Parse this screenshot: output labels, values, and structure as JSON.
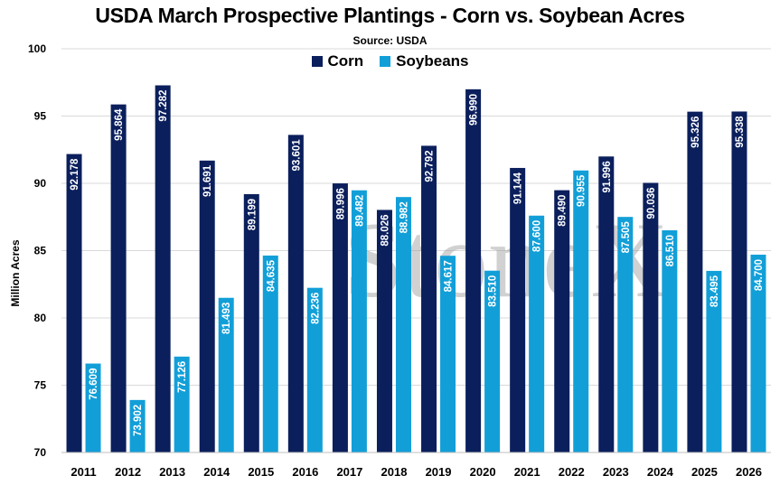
{
  "chart_data": {
    "type": "bar",
    "title": "USDA March Prospective Plantings - Corn vs. Soybean Acres",
    "subtitle": "Source: USDA",
    "xlabel": "",
    "ylabel": "Million Acres",
    "ylim": [
      70,
      100
    ],
    "yticks": [
      70,
      75,
      80,
      85,
      90,
      95,
      100
    ],
    "grid": true,
    "legend": "top-center",
    "watermark": "StoneX",
    "categories": [
      "2011",
      "2012",
      "2013",
      "2014",
      "2015",
      "2016",
      "2017",
      "2018",
      "2019",
      "2020",
      "2021",
      "2022",
      "2023",
      "2024",
      "2025",
      "2026"
    ],
    "series": [
      {
        "name": "Corn",
        "color": "#0b1f5c",
        "values": [
          92.178,
          95.864,
          97.282,
          91.691,
          89.199,
          93.601,
          89.996,
          88.026,
          92.792,
          96.99,
          91.144,
          89.49,
          91.996,
          90.036,
          95.326,
          95.338
        ],
        "labels": [
          "92.178",
          "95.864",
          "97.282",
          "91.691",
          "89.199",
          "93.601",
          "89.996",
          "88.026",
          "92.792",
          "96.990",
          "91.144",
          "89.490",
          "91.996",
          "90.036",
          "95.326",
          "95.338"
        ]
      },
      {
        "name": "Soybeans",
        "color": "#129fd8",
        "values": [
          76.609,
          73.902,
          77.126,
          81.493,
          84.635,
          82.236,
          89.482,
          88.982,
          84.617,
          83.51,
          87.6,
          90.955,
          87.505,
          86.51,
          83.495,
          84.7
        ],
        "labels": [
          "76.609",
          "73.902",
          "77.126",
          "81.493",
          "84.635",
          "82.236",
          "89.482",
          "88.982",
          "84.617",
          "83.510",
          "87.600",
          "90.955",
          "87.505",
          "86.510",
          "83.495",
          "84.700"
        ]
      }
    ]
  }
}
